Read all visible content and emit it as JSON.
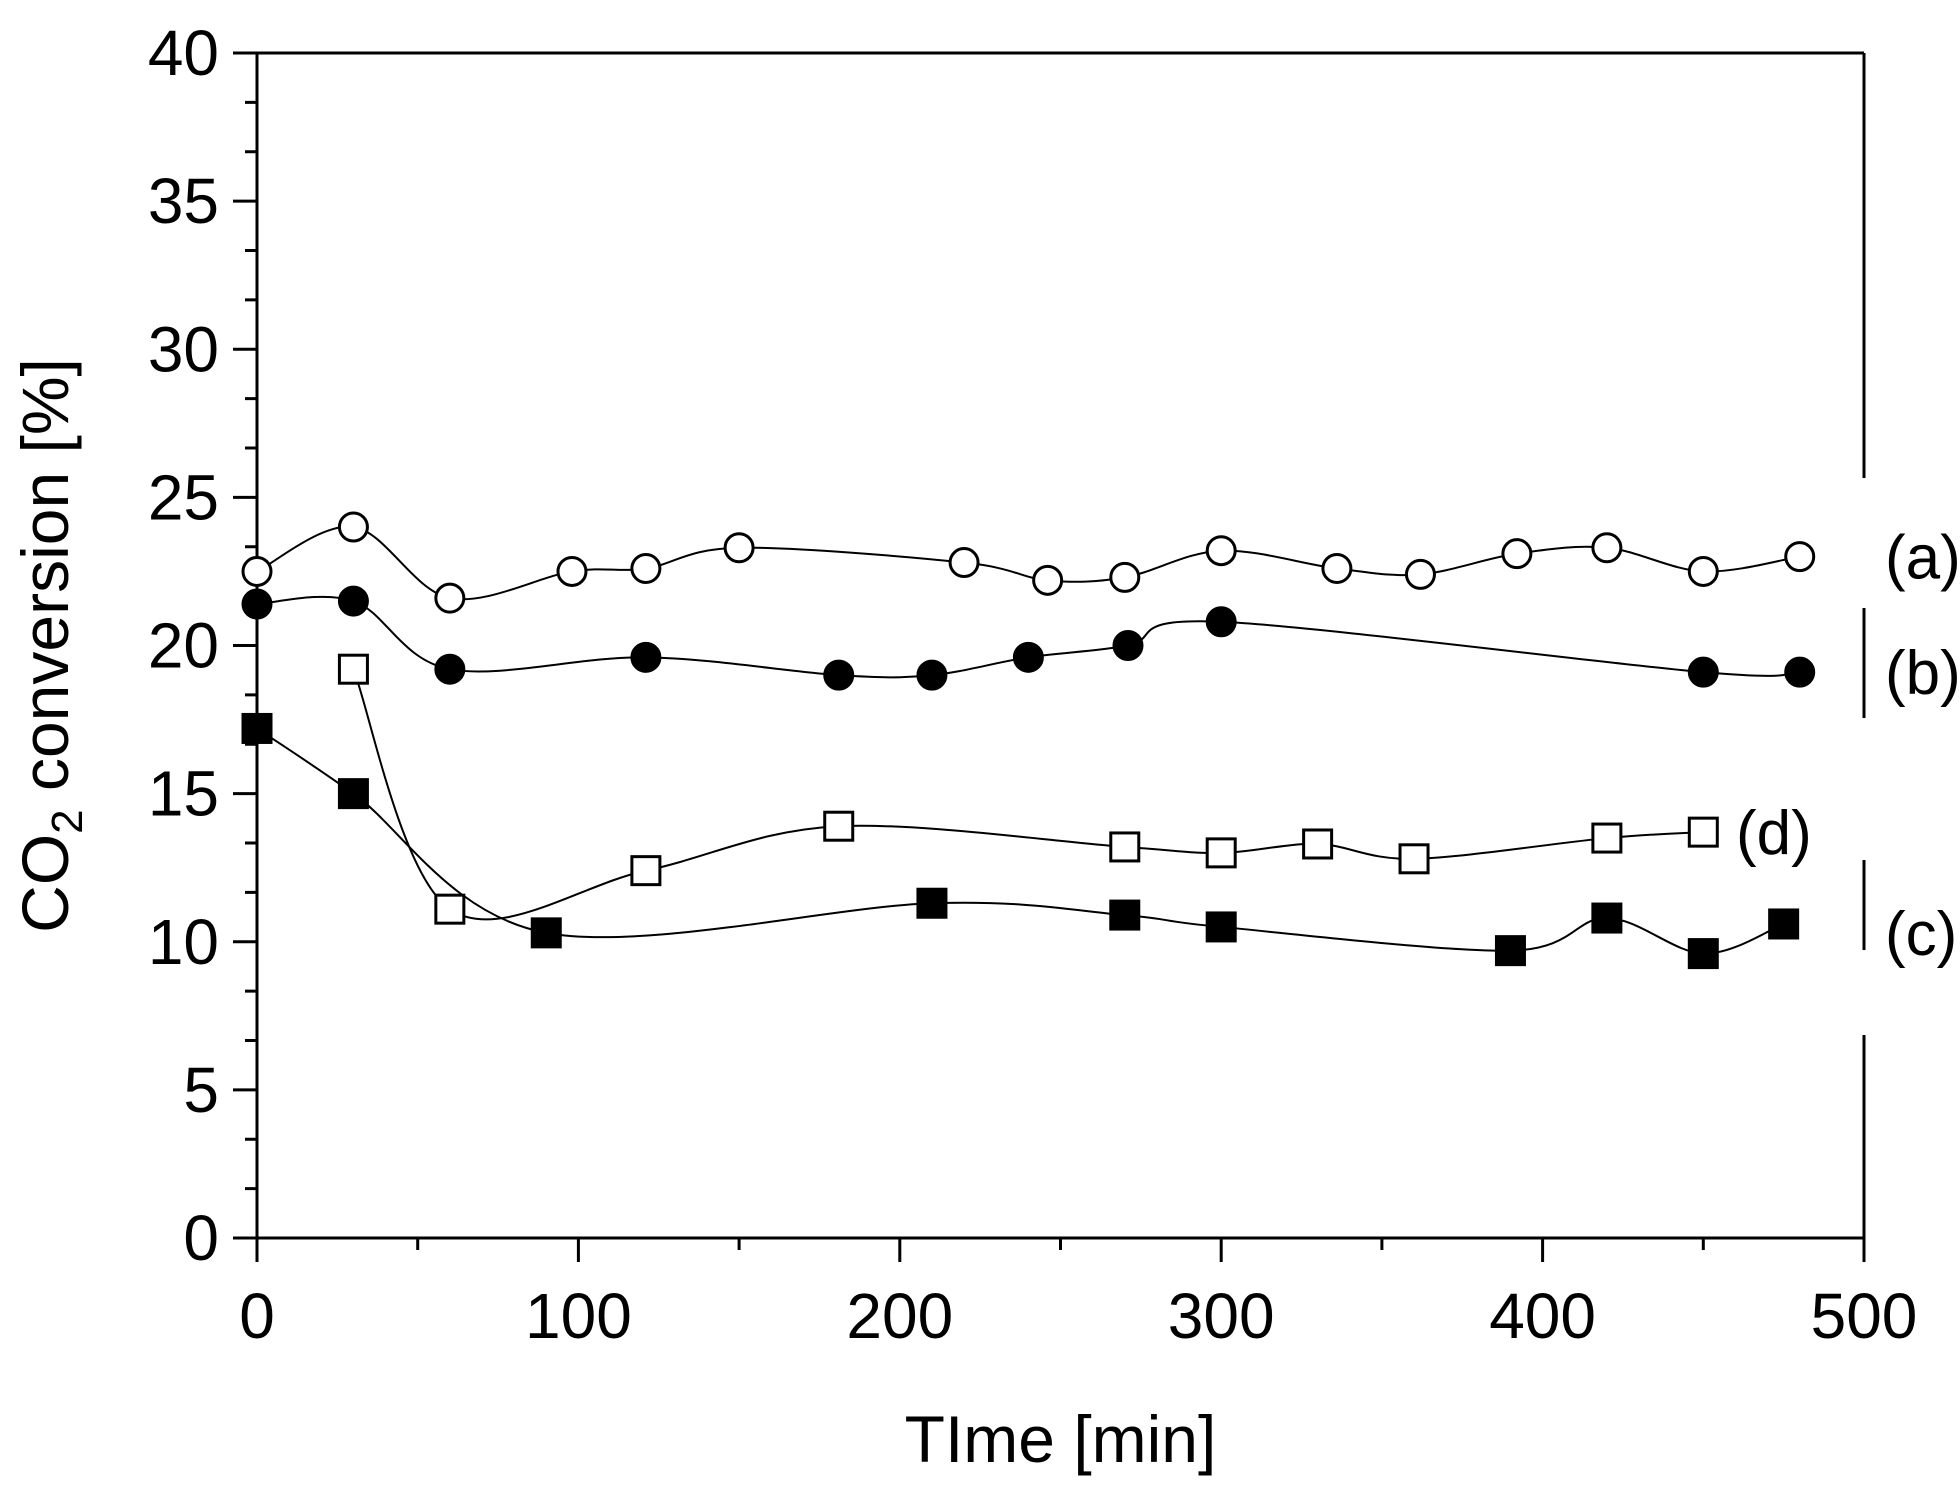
{
  "chart_data": {
    "type": "line",
    "title": "",
    "xlabel": "TIme [min]",
    "ylabel_main": "CO",
    "ylabel_sub": "2",
    "ylabel_rest": " conversion [%]",
    "xlim": [
      0,
      500
    ],
    "ylim": [
      0,
      40
    ],
    "xticks": [
      0,
      100,
      200,
      300,
      400,
      500
    ],
    "xtick_labels": [
      "0",
      "100",
      "200",
      "300",
      "400",
      "500"
    ],
    "yticks": [
      0,
      5,
      10,
      15,
      20,
      25,
      30,
      35,
      40
    ],
    "ytick_labels": [
      "0",
      "5",
      "10",
      "15",
      "20",
      "25",
      "30",
      "35",
      "40"
    ],
    "grid": false,
    "legend": "inline labels at right end of each series",
    "series": [
      {
        "name": "(a)",
        "marker": "circle",
        "fill": "open",
        "x": [
          0,
          30,
          60,
          98,
          121,
          150,
          220,
          246,
          270,
          300,
          336,
          362,
          392,
          420,
          450,
          480
        ],
        "y": [
          22.5,
          24.0,
          21.6,
          22.5,
          22.6,
          23.3,
          22.8,
          22.2,
          22.3,
          23.2,
          22.6,
          22.4,
          23.1,
          23.3,
          22.5,
          23.0
        ]
      },
      {
        "name": "(b)",
        "marker": "circle",
        "fill": "filled",
        "x": [
          0,
          30,
          60,
          121,
          181,
          210,
          240,
          271,
          300,
          450,
          480
        ],
        "y": [
          21.4,
          21.5,
          19.2,
          19.6,
          19.0,
          19.0,
          19.6,
          20.0,
          20.8,
          19.1,
          19.1
        ]
      },
      {
        "name": "(c)",
        "marker": "square",
        "fill": "filled",
        "x": [
          0,
          30,
          90,
          210,
          270,
          300,
          390,
          420,
          450,
          475
        ],
        "y": [
          17.2,
          15.0,
          10.3,
          11.3,
          10.9,
          10.5,
          9.7,
          10.8,
          9.6,
          10.6
        ]
      },
      {
        "name": "(d)",
        "marker": "square",
        "fill": "open",
        "x": [
          30,
          60,
          121,
          181,
          270,
          300,
          330,
          360,
          420,
          450
        ],
        "y": [
          19.2,
          11.1,
          12.4,
          13.9,
          13.2,
          13.0,
          13.3,
          12.8,
          13.5,
          13.7
        ]
      }
    ],
    "series_labels": [
      "(a)",
      "(b)",
      "(d)",
      "(c)"
    ]
  }
}
